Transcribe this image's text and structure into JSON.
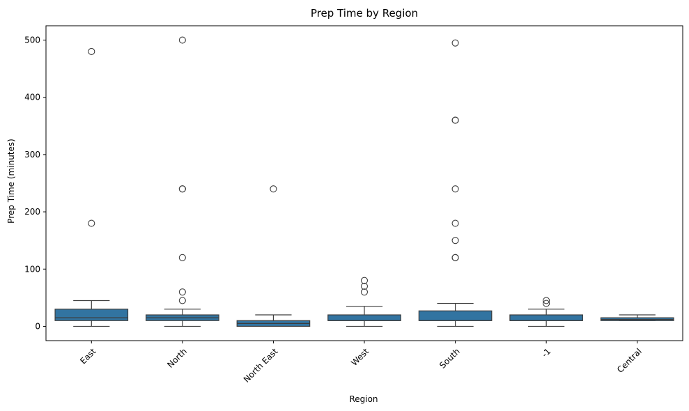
{
  "chart_data": {
    "type": "box",
    "title": "Prep Time by Region",
    "xlabel": "Region",
    "ylabel": "Prep Time (minutes)",
    "ylim": [
      -25,
      525
    ],
    "yticks": [
      0,
      100,
      200,
      300,
      400,
      500
    ],
    "categories": [
      "East",
      "North",
      "North East",
      "West",
      "South",
      "-1",
      "Central"
    ],
    "box_color": "#3274a1",
    "line_color": "#3d3d3d",
    "boxes": [
      {
        "category": "East",
        "whisker_low": 0,
        "q1": 10,
        "median": 15,
        "q3": 30,
        "whisker_high": 45,
        "outliers": [
          180,
          480
        ]
      },
      {
        "category": "North",
        "whisker_low": 0,
        "q1": 10,
        "median": 15,
        "q3": 20,
        "whisker_high": 30,
        "outliers": [
          45,
          60,
          120,
          240,
          240,
          500
        ]
      },
      {
        "category": "North East",
        "whisker_low": 0,
        "q1": 0,
        "median": 5,
        "q3": 10,
        "whisker_high": 20,
        "outliers": [
          240
        ]
      },
      {
        "category": "West",
        "whisker_low": 0,
        "q1": 10,
        "median": 10,
        "q3": 20,
        "whisker_high": 35,
        "outliers": [
          60,
          70,
          80
        ]
      },
      {
        "category": "South",
        "whisker_low": 0,
        "q1": 10,
        "median": 10,
        "q3": 27,
        "whisker_high": 40,
        "outliers": [
          120,
          120,
          150,
          180,
          240,
          360,
          360,
          495
        ]
      },
      {
        "category": "-1",
        "whisker_low": 0,
        "q1": 10,
        "median": 10,
        "q3": 20,
        "whisker_high": 30,
        "outliers": [
          40,
          45
        ]
      },
      {
        "category": "Central",
        "whisker_low": 10,
        "q1": 10,
        "median": 12,
        "q3": 15,
        "whisker_high": 20,
        "outliers": []
      }
    ]
  }
}
